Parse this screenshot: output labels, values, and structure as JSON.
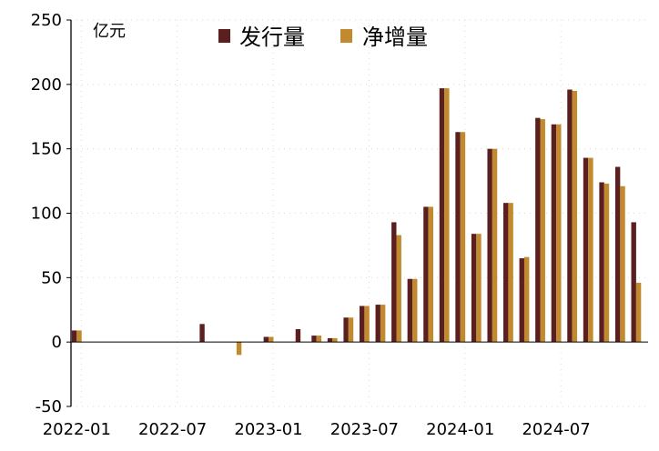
{
  "chart_data": {
    "type": "bar",
    "unit_label": "亿元",
    "categories": [
      "2022-01",
      "2022-02",
      "2022-03",
      "2022-04",
      "2022-05",
      "2022-06",
      "2022-07",
      "2022-08",
      "2022-09",
      "2022-10",
      "2022-11",
      "2022-12",
      "2023-01",
      "2023-02",
      "2023-03",
      "2023-04",
      "2023-05",
      "2023-06",
      "2023-07",
      "2023-08",
      "2023-09",
      "2023-10",
      "2023-11",
      "2023-12",
      "2024-01",
      "2024-02",
      "2024-03",
      "2024-04",
      "2024-05",
      "2024-06",
      "2024-07",
      "2024-08",
      "2024-09",
      "2024-10",
      "2024-11",
      "2024-12"
    ],
    "x_tick_labels": [
      "2022-01",
      "2022-07",
      "2023-01",
      "2023-07",
      "2024-01",
      "2024-07"
    ],
    "series": [
      {
        "name": "发行量",
        "color": "#5C1F1F",
        "values": [
          9,
          0,
          0,
          0,
          0,
          0,
          0,
          0,
          14,
          0,
          0,
          0,
          4,
          0,
          10,
          5,
          3,
          19,
          28,
          29,
          93,
          49,
          105,
          197,
          163,
          84,
          150,
          108,
          65,
          174,
          169,
          196,
          143,
          124,
          136,
          93
        ]
      },
      {
        "name": "净增量",
        "color": "#C18A2E",
        "values": [
          9,
          0,
          0,
          0,
          0,
          0,
          0,
          0,
          0,
          0,
          -10,
          0,
          4,
          0,
          0,
          5,
          3,
          19,
          28,
          29,
          83,
          49,
          105,
          197,
          163,
          84,
          150,
          108,
          66,
          173,
          169,
          195,
          143,
          123,
          121,
          46
        ]
      }
    ],
    "ylim": [
      -50,
      250
    ],
    "yticks": [
      -50,
      0,
      50,
      100,
      150,
      200,
      250
    ],
    "legend_position": "top-center",
    "grid": "light dashed"
  }
}
